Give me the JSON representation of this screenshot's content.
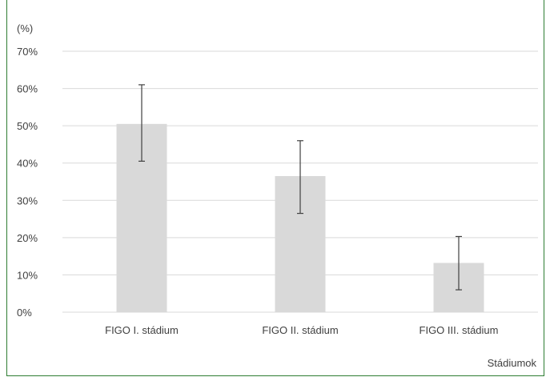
{
  "caption": "",
  "chart_data": {
    "type": "bar",
    "ylabel": "(%)",
    "xlabel": "Stádiumok",
    "categories": [
      "FIGO I. stádium",
      "FIGO II. stádium",
      "FIGO III. stádium"
    ],
    "values": [
      50.5,
      36.5,
      13.2
    ],
    "error_low": [
      40.5,
      26.5,
      6.0
    ],
    "error_high": [
      61.0,
      46.0,
      20.3
    ],
    "ylim": [
      0,
      70
    ],
    "yticks": [
      "0%",
      "10%",
      "20%",
      "30%",
      "40%",
      "50%",
      "60%",
      "70%"
    ],
    "grid": true,
    "bar_color": "#d9d9d9",
    "grid_color": "#d9d9d9",
    "error_color": "#404040"
  }
}
